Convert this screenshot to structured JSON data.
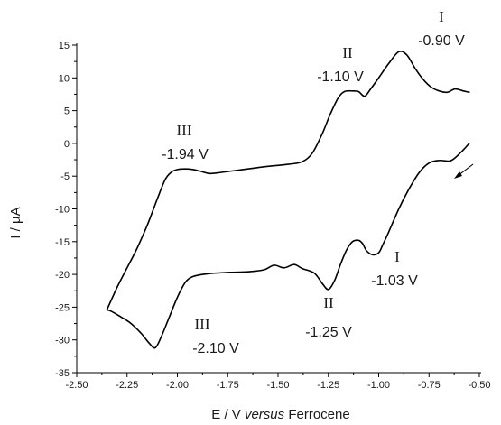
{
  "chart_data": {
    "type": "line",
    "title": "",
    "xlabel": {
      "prefix": "E / V ",
      "italic": "versus",
      "suffix": " Ferrocene"
    },
    "ylabel": "I / µA",
    "xlim": [
      -2.5,
      -0.5
    ],
    "ylim": [
      -35,
      15
    ],
    "x_reversed": true,
    "xticks": [
      "-2.50",
      "-2.25",
      "-2.00",
      "-1.75",
      "-1.50",
      "-1.25",
      "-1.00",
      "-0.75",
      "-0.50"
    ],
    "yticks": [
      "-35",
      "-30",
      "-25",
      "-20",
      "-15",
      "-10",
      "-5",
      "0",
      "5",
      "10",
      "15"
    ],
    "grid": false,
    "series": [
      {
        "values_cathodic_scan": [
          [
            -0.55,
            0.0
          ],
          [
            -0.58,
            -1.0
          ],
          [
            -0.62,
            -2.2
          ],
          [
            -0.65,
            -2.7
          ],
          [
            -0.7,
            -2.6
          ],
          [
            -0.75,
            -3.0
          ],
          [
            -0.8,
            -4.5
          ],
          [
            -0.85,
            -7.0
          ],
          [
            -0.9,
            -10.0
          ],
          [
            -0.95,
            -13.5
          ],
          [
            -0.98,
            -15.5
          ],
          [
            -1.0,
            -16.7
          ],
          [
            -1.03,
            -17.0
          ],
          [
            -1.06,
            -16.4
          ],
          [
            -1.08,
            -15.3
          ],
          [
            -1.1,
            -14.8
          ],
          [
            -1.13,
            -15.0
          ],
          [
            -1.16,
            -16.3
          ],
          [
            -1.19,
            -18.5
          ],
          [
            -1.22,
            -21.0
          ],
          [
            -1.25,
            -22.3
          ],
          [
            -1.28,
            -21.4
          ],
          [
            -1.32,
            -19.8
          ],
          [
            -1.38,
            -19.1
          ],
          [
            -1.42,
            -18.5
          ],
          [
            -1.47,
            -19.0
          ],
          [
            -1.52,
            -18.6
          ],
          [
            -1.57,
            -19.3
          ],
          [
            -1.65,
            -19.6
          ],
          [
            -1.75,
            -19.7
          ],
          [
            -1.85,
            -19.9
          ],
          [
            -1.92,
            -20.3
          ],
          [
            -1.96,
            -21.2
          ],
          [
            -2.0,
            -23.5
          ],
          [
            -2.04,
            -26.5
          ],
          [
            -2.08,
            -29.5
          ],
          [
            -2.11,
            -31.2
          ],
          [
            -2.14,
            -30.5
          ],
          [
            -2.18,
            -29.0
          ],
          [
            -2.23,
            -27.5
          ],
          [
            -2.28,
            -26.5
          ],
          [
            -2.33,
            -25.6
          ],
          [
            -2.35,
            -25.4
          ]
        ],
        "values_anodic_scan": [
          [
            -2.35,
            -25.4
          ],
          [
            -2.3,
            -22.0
          ],
          [
            -2.25,
            -19.0
          ],
          [
            -2.2,
            -16.0
          ],
          [
            -2.15,
            -12.5
          ],
          [
            -2.1,
            -8.5
          ],
          [
            -2.06,
            -5.5
          ],
          [
            -2.03,
            -4.4
          ],
          [
            -2.0,
            -4.0
          ],
          [
            -1.96,
            -3.9
          ],
          [
            -1.92,
            -4.0
          ],
          [
            -1.88,
            -4.3
          ],
          [
            -1.84,
            -4.6
          ],
          [
            -1.8,
            -4.5
          ],
          [
            -1.75,
            -4.3
          ],
          [
            -1.65,
            -3.9
          ],
          [
            -1.55,
            -3.5
          ],
          [
            -1.45,
            -3.2
          ],
          [
            -1.38,
            -2.8
          ],
          [
            -1.33,
            -1.5
          ],
          [
            -1.28,
            1.5
          ],
          [
            -1.24,
            4.5
          ],
          [
            -1.2,
            7.0
          ],
          [
            -1.17,
            7.9
          ],
          [
            -1.13,
            8.0
          ],
          [
            -1.1,
            7.9
          ],
          [
            -1.07,
            7.2
          ],
          [
            -1.04,
            8.3
          ],
          [
            -1.0,
            10.0
          ],
          [
            -0.95,
            12.2
          ],
          [
            -0.9,
            14.0
          ],
          [
            -0.86,
            13.5
          ],
          [
            -0.82,
            11.5
          ],
          [
            -0.78,
            9.8
          ],
          [
            -0.74,
            8.6
          ],
          [
            -0.7,
            8.0
          ],
          [
            -0.66,
            7.8
          ],
          [
            -0.62,
            8.3
          ],
          [
            -0.58,
            8.0
          ],
          [
            -0.55,
            7.8
          ]
        ]
      }
    ],
    "annotations": [
      {
        "roman": "I",
        "value": "-0.90 V"
      },
      {
        "roman": "II",
        "value": "-1.10 V"
      },
      {
        "roman": "III",
        "value": "-1.94 V"
      },
      {
        "roman": "I",
        "value": "-1.03 V"
      },
      {
        "roman": "II",
        "value": "-1.25 V"
      },
      {
        "roman": "III",
        "value": "-2.10 V"
      }
    ]
  }
}
